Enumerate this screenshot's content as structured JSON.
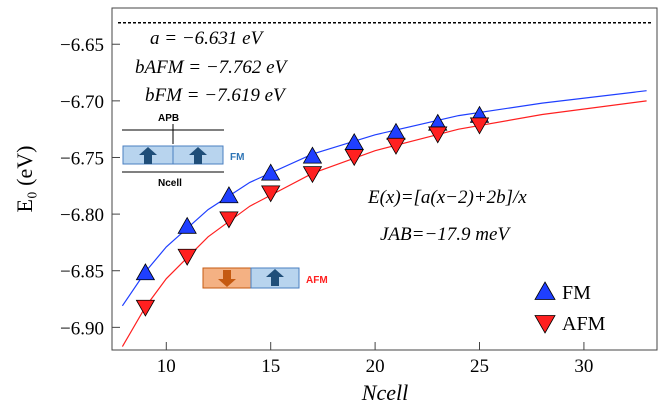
{
  "chart_data": {
    "type": "scatter",
    "x_label": "Ncell",
    "y_label": "E₀ (eV)",
    "xlim": [
      7.4,
      33.5
    ],
    "ylim": [
      -6.92,
      -6.618
    ],
    "xticks": [
      10,
      15,
      20,
      25,
      30
    ],
    "yticks": [
      {
        "value": -6.9,
        "label": "−6.90"
      },
      {
        "value": -6.85,
        "label": "−6.85"
      },
      {
        "value": -6.8,
        "label": "−6.80"
      },
      {
        "value": -6.75,
        "label": "−6.75"
      },
      {
        "value": -6.7,
        "label": "−6.70"
      },
      {
        "value": -6.65,
        "label": "−6.65"
      }
    ],
    "legend": "lower right",
    "series": [
      {
        "name": "FM",
        "color": "#1f3fff",
        "marker": "triangle-up",
        "x": [
          9,
          11,
          13,
          15,
          17,
          19,
          21,
          23,
          25
        ],
        "values": [
          -6.852,
          -6.811,
          -6.784,
          -6.764,
          -6.749,
          -6.737,
          -6.728,
          -6.72,
          -6.713
        ]
      },
      {
        "name": "AFM",
        "color": "#ff2020",
        "marker": "triangle-down",
        "x": [
          9,
          11,
          13,
          15,
          17,
          19,
          21,
          23,
          25
        ],
        "values": [
          -6.882,
          -6.837,
          -6.804,
          -6.781,
          -6.764,
          -6.749,
          -6.739,
          -6.729,
          -6.721
        ]
      }
    ],
    "fit_lines": [
      {
        "color": "#1f3fff",
        "x": [
          7.9,
          9,
          10,
          12,
          14,
          17,
          20,
          24,
          28,
          33
        ],
        "values": [
          -6.881,
          -6.851,
          -6.829,
          -6.796,
          -6.772,
          -6.747,
          -6.73,
          -6.713,
          -6.702,
          -6.691
        ]
      },
      {
        "color": "#ff2020",
        "x": [
          7.9,
          9,
          10,
          12,
          14,
          17,
          20,
          24,
          28,
          33
        ],
        "values": [
          -6.917,
          -6.882,
          -6.857,
          -6.82,
          -6.793,
          -6.764,
          -6.744,
          -6.725,
          -6.712,
          -6.7
        ]
      }
    ],
    "reference_line": {
      "y": -6.631,
      "color": "#000000"
    },
    "annotations": [
      "a = −6.631 eV",
      "bAFM = −7.762 eV",
      "bFM = −7.619 eV",
      "E(x)=[a(x−2)+2b]/x",
      "JAB=−17.9 meV"
    ],
    "inset_labels": {
      "apb": "APB",
      "fm": "FM",
      "ncell": "Ncell",
      "afm": "AFM"
    }
  }
}
